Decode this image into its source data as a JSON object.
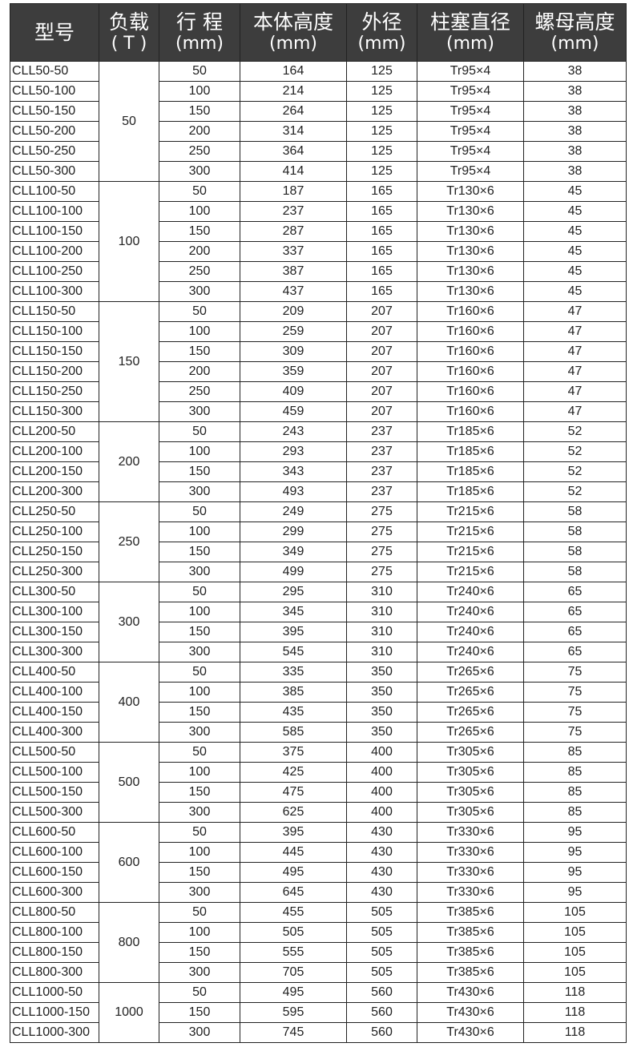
{
  "headers": [
    {
      "title": "型号",
      "unit": ""
    },
    {
      "title": "负载",
      "unit": "( T )"
    },
    {
      "title": "行 程",
      "unit": "(mm)"
    },
    {
      "title": "本体高度",
      "unit": "(mm)"
    },
    {
      "title": "外径",
      "unit": "(mm)"
    },
    {
      "title": "柱塞直径",
      "unit": "(mm)"
    },
    {
      "title": "螺母高度",
      "unit": "(mm)"
    }
  ],
  "groups": [
    {
      "load": "50",
      "rows": [
        [
          "CLL50-50",
          "50",
          "164",
          "125",
          "Tr95×4",
          "38"
        ],
        [
          "CLL50-100",
          "100",
          "214",
          "125",
          "Tr95×4",
          "38"
        ],
        [
          "CLL50-150",
          "150",
          "264",
          "125",
          "Tr95×4",
          "38"
        ],
        [
          "CLL50-200",
          "200",
          "314",
          "125",
          "Tr95×4",
          "38"
        ],
        [
          "CLL50-250",
          "250",
          "364",
          "125",
          "Tr95×4",
          "38"
        ],
        [
          "CLL50-300",
          "300",
          "414",
          "125",
          "Tr95×4",
          "38"
        ]
      ]
    },
    {
      "load": "100",
      "rows": [
        [
          "CLL100-50",
          "50",
          "187",
          "165",
          "Tr130×6",
          "45"
        ],
        [
          "CLL100-100",
          "100",
          "237",
          "165",
          "Tr130×6",
          "45"
        ],
        [
          "CLL100-150",
          "150",
          "287",
          "165",
          "Tr130×6",
          "45"
        ],
        [
          "CLL100-200",
          "200",
          "337",
          "165",
          "Tr130×6",
          "45"
        ],
        [
          "CLL100-250",
          "250",
          "387",
          "165",
          "Tr130×6",
          "45"
        ],
        [
          "CLL100-300",
          "300",
          "437",
          "165",
          "Tr130×6",
          "45"
        ]
      ]
    },
    {
      "load": "150",
      "rows": [
        [
          "CLL150-50",
          "50",
          "209",
          "207",
          "Tr160×6",
          "47"
        ],
        [
          "CLL150-100",
          "100",
          "259",
          "207",
          "Tr160×6",
          "47"
        ],
        [
          "CLL150-150",
          "150",
          "309",
          "207",
          "Tr160×6",
          "47"
        ],
        [
          "CLL150-200",
          "200",
          "359",
          "207",
          "Tr160×6",
          "47"
        ],
        [
          "CLL150-250",
          "250",
          "409",
          "207",
          "Tr160×6",
          "47"
        ],
        [
          "CLL150-300",
          "300",
          "459",
          "207",
          "Tr160×6",
          "47"
        ]
      ]
    },
    {
      "load": "200",
      "rows": [
        [
          "CLL200-50",
          "50",
          "243",
          "237",
          "Tr185×6",
          "52"
        ],
        [
          "CLL200-100",
          "100",
          "293",
          "237",
          "Tr185×6",
          "52"
        ],
        [
          "CLL200-150",
          "150",
          "343",
          "237",
          "Tr185×6",
          "52"
        ],
        [
          "CLL200-300",
          "300",
          "493",
          "237",
          "Tr185×6",
          "52"
        ]
      ]
    },
    {
      "load": "250",
      "rows": [
        [
          "CLL250-50",
          "50",
          "249",
          "275",
          "Tr215×6",
          "58"
        ],
        [
          "CLL250-100",
          "100",
          "299",
          "275",
          "Tr215×6",
          "58"
        ],
        [
          "CLL250-150",
          "150",
          "349",
          "275",
          "Tr215×6",
          "58"
        ],
        [
          "CLL250-300",
          "300",
          "499",
          "275",
          "Tr215×6",
          "58"
        ]
      ]
    },
    {
      "load": "300",
      "rows": [
        [
          "CLL300-50",
          "50",
          "295",
          "310",
          "Tr240×6",
          "65"
        ],
        [
          "CLL300-100",
          "100",
          "345",
          "310",
          "Tr240×6",
          "65"
        ],
        [
          "CLL300-150",
          "150",
          "395",
          "310",
          "Tr240×6",
          "65"
        ],
        [
          "CLL300-300",
          "300",
          "545",
          "310",
          "Tr240×6",
          "65"
        ]
      ]
    },
    {
      "load": "400",
      "rows": [
        [
          "CLL400-50",
          "50",
          "335",
          "350",
          "Tr265×6",
          "75"
        ],
        [
          "CLL400-100",
          "100",
          "385",
          "350",
          "Tr265×6",
          "75"
        ],
        [
          "CLL400-150",
          "150",
          "435",
          "350",
          "Tr265×6",
          "75"
        ],
        [
          "CLL400-300",
          "300",
          "585",
          "350",
          "Tr265×6",
          "75"
        ]
      ]
    },
    {
      "load": "500",
      "rows": [
        [
          "CLL500-50",
          "50",
          "375",
          "400",
          "Tr305×6",
          "85"
        ],
        [
          "CLL500-100",
          "100",
          "425",
          "400",
          "Tr305×6",
          "85"
        ],
        [
          "CLL500-150",
          "150",
          "475",
          "400",
          "Tr305×6",
          "85"
        ],
        [
          "CLL500-300",
          "300",
          "625",
          "400",
          "Tr305×6",
          "85"
        ]
      ]
    },
    {
      "load": "600",
      "rows": [
        [
          "CLL600-50",
          "50",
          "395",
          "430",
          "Tr330×6",
          "95"
        ],
        [
          "CLL600-100",
          "100",
          "445",
          "430",
          "Tr330×6",
          "95"
        ],
        [
          "CLL600-150",
          "150",
          "495",
          "430",
          "Tr330×6",
          "95"
        ],
        [
          "CLL600-300",
          "300",
          "645",
          "430",
          "Tr330×6",
          "95"
        ]
      ]
    },
    {
      "load": "800",
      "rows": [
        [
          "CLL800-50",
          "50",
          "455",
          "505",
          "Tr385×6",
          "105"
        ],
        [
          "CLL800-100",
          "100",
          "505",
          "505",
          "Tr385×6",
          "105"
        ],
        [
          "CLL800-150",
          "150",
          "555",
          "505",
          "Tr385×6",
          "105"
        ],
        [
          "CLL800-300",
          "300",
          "705",
          "505",
          "Tr385×6",
          "105"
        ]
      ]
    },
    {
      "load": "1000",
      "rows": [
        [
          "CLL1000-50",
          "50",
          "495",
          "560",
          "Tr430×6",
          "118"
        ],
        [
          "CLL1000-150",
          "150",
          "595",
          "560",
          "Tr430×6",
          "118"
        ],
        [
          "CLL1000-300",
          "300",
          "745",
          "560",
          "Tr430×6",
          "118"
        ]
      ]
    }
  ]
}
